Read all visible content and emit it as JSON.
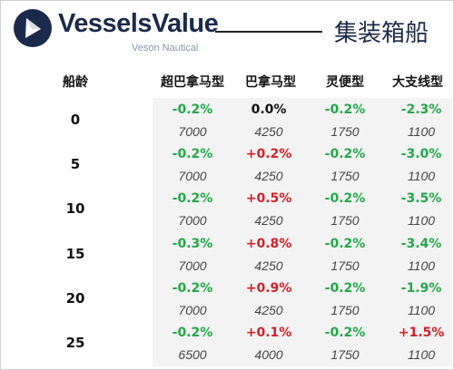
{
  "header": {
    "brand": "VesselsValue",
    "brand_sub": "Veson Nautical",
    "title": "集装箱船"
  },
  "colors": {
    "positive": "#d6202a",
    "negative": "#22a84a",
    "neutral": "#111111",
    "brand_navy": "#1b2a4a"
  },
  "table": {
    "age_header": "船龄",
    "columns": [
      "超巴拿马型",
      "巴拿马型",
      "灵便型",
      "大支线型"
    ],
    "rows": [
      {
        "age": "0",
        "changes": [
          "-0.2%",
          "0.0%",
          "-0.2%",
          "-2.3%"
        ],
        "values": [
          "7000",
          "4250",
          "1750",
          "1100"
        ]
      },
      {
        "age": "5",
        "changes": [
          "-0.2%",
          "+0.2%",
          "-0.2%",
          "-3.0%"
        ],
        "values": [
          "7000",
          "4250",
          "1750",
          "1100"
        ]
      },
      {
        "age": "10",
        "changes": [
          "-0.2%",
          "+0.5%",
          "-0.2%",
          "-3.5%"
        ],
        "values": [
          "7000",
          "4250",
          "1750",
          "1100"
        ]
      },
      {
        "age": "15",
        "changes": [
          "-0.3%",
          "+0.8%",
          "-0.2%",
          "-3.4%"
        ],
        "values": [
          "7000",
          "4250",
          "1750",
          "1100"
        ]
      },
      {
        "age": "20",
        "changes": [
          "-0.2%",
          "+0.9%",
          "-0.2%",
          "-1.9%"
        ],
        "values": [
          "7000",
          "4250",
          "1750",
          "1100"
        ]
      },
      {
        "age": "25",
        "changes": [
          "-0.2%",
          "+0.1%",
          "-0.2%",
          "+1.5%"
        ],
        "values": [
          "6500",
          "4000",
          "1750",
          "1100"
        ]
      }
    ]
  }
}
